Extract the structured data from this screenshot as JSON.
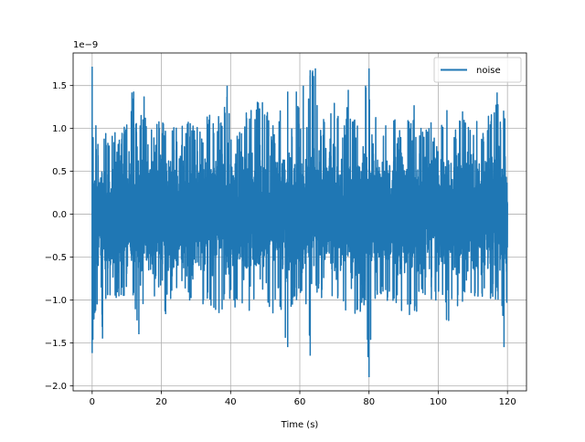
{
  "chart_data": {
    "type": "line",
    "title": "",
    "xlabel": "Time (s)",
    "ylabel": "",
    "y_offset_label": "1e−9",
    "xlim": [
      -5.5,
      125.5
    ],
    "ylim": [
      -2.06,
      1.88
    ],
    "x_ticks": [
      0,
      20,
      40,
      60,
      80,
      100,
      120
    ],
    "x_tick_labels": [
      "0",
      "20",
      "40",
      "60",
      "80",
      "100",
      "120"
    ],
    "y_ticks": [
      -2.0,
      -1.5,
      -1.0,
      -0.5,
      0.0,
      0.5,
      1.0,
      1.5
    ],
    "y_tick_labels": [
      "−2.0",
      "−1.5",
      "−1.0",
      "−0.5",
      "0.0",
      "0.5",
      "1.0",
      "1.5"
    ],
    "grid": true,
    "legend_position": "top-right",
    "x_range": [
      0,
      120
    ],
    "y_scale_factor": 1e-09,
    "series": [
      {
        "name": "noise",
        "color": "#1f77b4",
        "envelope_upper": [
          [
            0,
            1.72
          ],
          [
            0.8,
            1.05
          ],
          [
            2,
            1.0
          ],
          [
            3,
            0.9
          ],
          [
            4,
            1.05
          ],
          [
            5,
            0.95
          ],
          [
            8,
            0.95
          ],
          [
            10,
            1.05
          ],
          [
            11.5,
            1.42
          ],
          [
            12,
            1.43
          ],
          [
            13,
            0.95
          ],
          [
            15,
            1.4
          ],
          [
            16,
            1.0
          ],
          [
            20,
            1.1
          ],
          [
            25,
            1.0
          ],
          [
            27,
            1.1
          ],
          [
            30,
            1.0
          ],
          [
            33,
            1.2
          ],
          [
            35,
            1.1
          ],
          [
            37,
            1.15
          ],
          [
            39,
            1.5
          ],
          [
            40,
            1.0
          ],
          [
            43,
            1.0
          ],
          [
            45,
            1.3
          ],
          [
            50,
            1.4
          ],
          [
            52,
            1.0
          ],
          [
            55,
            1.4
          ],
          [
            56.5,
            1.43
          ],
          [
            58,
            1.0
          ],
          [
            59,
            1.43
          ],
          [
            60,
            1.2
          ],
          [
            61,
            1.5
          ],
          [
            62,
            1.0
          ],
          [
            63,
            1.68
          ],
          [
            64.5,
            1.7
          ],
          [
            66,
            1.05
          ],
          [
            70,
            1.3
          ],
          [
            73,
            1.02
          ],
          [
            74,
            1.45
          ],
          [
            75,
            1.2
          ],
          [
            77,
            1.0
          ],
          [
            79,
            1.5
          ],
          [
            80,
            1.7
          ],
          [
            81,
            1.0
          ],
          [
            82,
            1.3
          ],
          [
            84,
            1.0
          ],
          [
            86,
            1.2
          ],
          [
            88,
            1.1
          ],
          [
            90,
            1.0
          ],
          [
            92,
            1.2
          ],
          [
            93,
            1.28
          ],
          [
            95,
            1.0
          ],
          [
            98,
            1.1
          ],
          [
            100,
            1.0
          ],
          [
            103,
            1.25
          ],
          [
            105,
            1.0
          ],
          [
            107,
            1.3
          ],
          [
            110,
            1.0
          ],
          [
            112,
            1.3
          ],
          [
            113,
            1.0
          ],
          [
            116,
            1.35
          ],
          [
            117,
            1.42
          ],
          [
            118,
            1.1
          ],
          [
            119,
            1.4
          ],
          [
            120,
            1.0
          ]
        ],
        "envelope_lower": [
          [
            0,
            -1.62
          ],
          [
            0.8,
            -1.2
          ],
          [
            2,
            -1.0
          ],
          [
            3,
            -1.45
          ],
          [
            4,
            -1.0
          ],
          [
            6,
            -0.95
          ],
          [
            8,
            -1.0
          ],
          [
            10,
            -1.0
          ],
          [
            12,
            -1.0
          ],
          [
            13.5,
            -1.4
          ],
          [
            15,
            -1.0
          ],
          [
            18,
            -1.0
          ],
          [
            20,
            -1.0
          ],
          [
            21,
            -1.3
          ],
          [
            22,
            -1.0
          ],
          [
            25,
            -1.0
          ],
          [
            30,
            -1.0
          ],
          [
            34,
            -1.2
          ],
          [
            36,
            -1.1
          ],
          [
            37,
            -1.3
          ],
          [
            38,
            -1.0
          ],
          [
            40,
            -1.0
          ],
          [
            42,
            -1.2
          ],
          [
            45,
            -1.15
          ],
          [
            47,
            -1.15
          ],
          [
            50,
            -1.0
          ],
          [
            52,
            -1.3
          ],
          [
            54,
            -1.0
          ],
          [
            55,
            -1.3
          ],
          [
            56.5,
            -1.55
          ],
          [
            58,
            -1.0
          ],
          [
            60,
            -1.0
          ],
          [
            62,
            -1.2
          ],
          [
            63,
            -1.65
          ],
          [
            64,
            -1.0
          ],
          [
            66,
            -1.0
          ],
          [
            68,
            -1.0
          ],
          [
            70,
            -1.2
          ],
          [
            72,
            -1.1
          ],
          [
            75,
            -1.2
          ],
          [
            76,
            -1.3
          ],
          [
            78,
            -1.1
          ],
          [
            79,
            -1.2
          ],
          [
            80,
            -1.9
          ],
          [
            81,
            -1.0
          ],
          [
            85,
            -1.0
          ],
          [
            90,
            -1.15
          ],
          [
            93,
            -1.3
          ],
          [
            95,
            -1.0
          ],
          [
            100,
            -1.0
          ],
          [
            103,
            -1.3
          ],
          [
            105,
            -1.0
          ],
          [
            106,
            -1.2
          ],
          [
            108,
            -1.0
          ],
          [
            110,
            -1.0
          ],
          [
            115,
            -1.0
          ],
          [
            118,
            -1.05
          ],
          [
            119,
            -1.55
          ],
          [
            120,
            -1.0
          ]
        ]
      }
    ]
  }
}
